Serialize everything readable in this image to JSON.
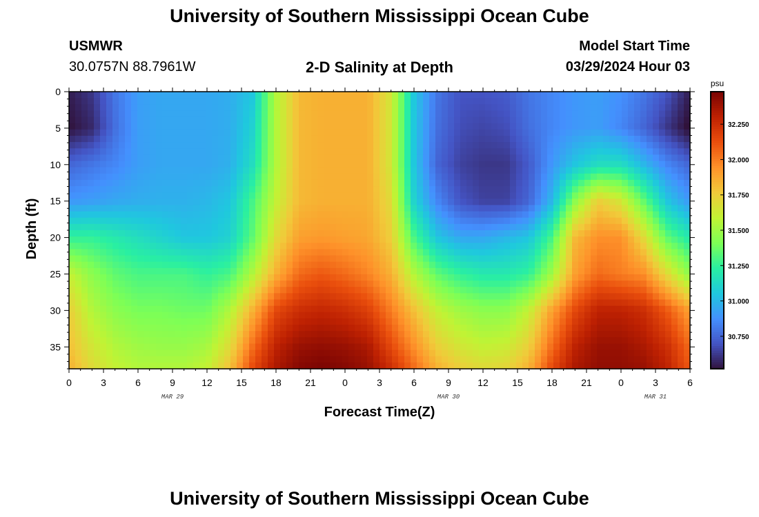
{
  "header": {
    "title": "University of Southern Mississippi Ocean Cube",
    "station": "USMWR",
    "coordinates": "30.0757N  88.7961W",
    "subtitle": "2-D Salinity at Depth",
    "model_start_label": "Model Start Time",
    "model_start_value": "03/29/2024 Hour 03"
  },
  "footer": {
    "title": "University of Southern Mississippi Ocean Cube"
  },
  "chart_data": {
    "type": "heatmap",
    "title": "2-D Salinity at Depth",
    "xlabel": "Forecast Time(Z)",
    "ylabel": "Depth (ft)",
    "x_tick_labels": [
      "0",
      "3",
      "6",
      "9",
      "12",
      "15",
      "18",
      "21",
      "0",
      "3",
      "6",
      "9",
      "12",
      "15",
      "18",
      "21",
      "0",
      "3",
      "6"
    ],
    "date_labels": [
      {
        "label": "MAR 29",
        "hour": 9
      },
      {
        "label": "MAR 30",
        "hour": 33
      },
      {
        "label": "MAR 31",
        "hour": 51
      }
    ],
    "x_range_hours": [
      0,
      54
    ],
    "y_ticks": [
      0,
      5,
      10,
      15,
      20,
      25,
      30,
      35
    ],
    "y_range": [
      0,
      38
    ],
    "y_inverted": true,
    "colorbar": {
      "unit": "psu",
      "ticks": [
        "30.750",
        "31.000",
        "31.250",
        "31.500",
        "31.750",
        "32.000",
        "32.250"
      ],
      "tick_values": [
        30.75,
        31.0,
        31.25,
        31.5,
        31.75,
        32.0,
        32.25
      ],
      "min": 30.52,
      "max": 32.48,
      "colors": [
        "#30123b",
        "#4454c4",
        "#4490fe",
        "#1fc8de",
        "#29efa2",
        "#7dff56",
        "#c1f334",
        "#f1ca3a",
        "#fe922a",
        "#ea4f0d",
        "#be2102",
        "#7a0403"
      ]
    },
    "salinity_grid": {
      "x_hours": [
        0,
        2,
        4,
        6,
        8,
        10,
        12,
        14,
        16,
        18,
        20,
        22,
        24,
        26,
        28,
        30,
        32,
        34,
        36,
        38,
        40,
        42,
        44,
        46,
        48,
        50,
        52,
        54
      ],
      "depths": [
        0,
        5,
        10,
        15,
        20,
        25,
        30,
        35,
        38
      ],
      "values": [
        [
          30.55,
          30.62,
          30.8,
          30.92,
          30.95,
          30.95,
          30.95,
          30.97,
          31.05,
          31.55,
          31.82,
          31.85,
          31.85,
          31.85,
          31.65,
          31.05,
          30.8,
          30.7,
          30.7,
          30.72,
          30.8,
          30.85,
          30.9,
          30.92,
          30.88,
          30.8,
          30.7,
          30.55
        ],
        [
          30.52,
          30.58,
          30.78,
          30.92,
          30.95,
          30.95,
          30.95,
          30.97,
          31.1,
          31.55,
          31.82,
          31.85,
          31.85,
          31.85,
          31.65,
          31.05,
          30.78,
          30.68,
          30.66,
          30.68,
          30.78,
          30.85,
          30.9,
          30.92,
          30.85,
          30.75,
          30.62,
          30.5
        ],
        [
          30.75,
          30.8,
          30.85,
          30.92,
          30.95,
          30.95,
          30.95,
          30.98,
          31.15,
          31.55,
          31.82,
          31.85,
          31.85,
          31.85,
          31.65,
          31.05,
          30.75,
          30.65,
          30.62,
          30.62,
          30.72,
          30.9,
          31.05,
          31.15,
          31.15,
          31.0,
          30.85,
          30.75
        ],
        [
          30.9,
          30.92,
          30.95,
          30.97,
          30.98,
          30.98,
          31.0,
          31.05,
          31.3,
          31.6,
          31.82,
          31.85,
          31.85,
          31.85,
          31.7,
          31.1,
          30.85,
          30.7,
          30.65,
          30.65,
          30.75,
          31.0,
          31.45,
          31.75,
          31.65,
          31.35,
          31.05,
          30.9
        ],
        [
          31.25,
          31.25,
          31.2,
          31.15,
          31.1,
          31.05,
          31.05,
          31.1,
          31.35,
          31.7,
          31.9,
          31.92,
          31.9,
          31.88,
          31.75,
          31.3,
          31.05,
          30.95,
          30.95,
          31.0,
          31.05,
          31.3,
          31.82,
          31.95,
          31.95,
          31.7,
          31.35,
          31.2
        ],
        [
          31.6,
          31.45,
          31.35,
          31.3,
          31.3,
          31.3,
          31.25,
          31.3,
          31.55,
          31.85,
          32.05,
          32.1,
          32.05,
          31.98,
          31.85,
          31.55,
          31.35,
          31.25,
          31.2,
          31.2,
          31.25,
          31.5,
          31.9,
          32.05,
          32.0,
          31.95,
          31.7,
          31.45
        ],
        [
          31.75,
          31.55,
          31.45,
          31.4,
          31.4,
          31.38,
          31.38,
          31.55,
          31.85,
          32.15,
          32.25,
          32.28,
          32.25,
          32.18,
          32.0,
          31.8,
          31.6,
          31.5,
          31.45,
          31.45,
          31.6,
          31.9,
          32.15,
          32.3,
          32.3,
          32.25,
          32.1,
          31.9
        ],
        [
          31.8,
          31.65,
          31.55,
          31.5,
          31.48,
          31.48,
          31.52,
          31.7,
          32.05,
          32.3,
          32.4,
          32.42,
          32.4,
          32.35,
          32.15,
          31.95,
          31.75,
          31.65,
          31.6,
          31.62,
          31.75,
          32.05,
          32.3,
          32.4,
          32.4,
          32.35,
          32.25,
          32.05
        ],
        [
          31.85,
          31.7,
          31.6,
          31.55,
          31.55,
          31.55,
          31.6,
          31.8,
          32.15,
          32.35,
          32.45,
          32.48,
          32.45,
          32.4,
          32.25,
          32.05,
          31.85,
          31.75,
          31.7,
          31.72,
          31.85,
          32.15,
          32.35,
          32.42,
          32.42,
          32.4,
          32.3,
          32.1
        ]
      ]
    }
  }
}
